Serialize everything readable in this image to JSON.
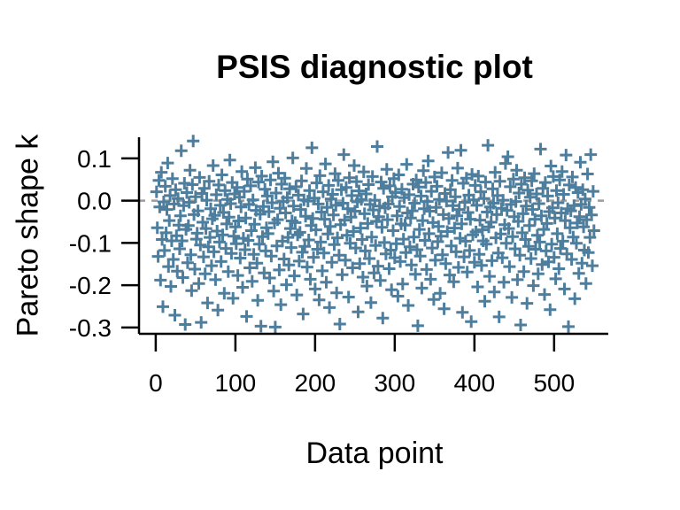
{
  "page": {
    "background": "#ffffff"
  },
  "chart_data": {
    "type": "scatter",
    "title": "PSIS diagnostic plot",
    "xlabel": "Data point",
    "ylabel": "Pareto shape k",
    "marker": "plus",
    "marker_color": "#4e7e9d",
    "axis_color": "#000000",
    "tick_label_color": "#000000",
    "hline": {
      "y": 0,
      "style": "dashed",
      "color": "#9c9c9c"
    },
    "grid": false,
    "legend": false,
    "xlim": [
      -21,
      568
    ],
    "ylim": [
      -0.315,
      0.15
    ],
    "xticks": [
      0,
      100,
      200,
      300,
      400,
      500
    ],
    "xtick_labels": [
      "0",
      "100",
      "200",
      "300",
      "400",
      "500"
    ],
    "yticks": [
      0.1,
      0.0,
      -0.1,
      -0.2,
      -0.3
    ],
    "ytick_labels": [
      "0.1",
      "0.0",
      "-0.1",
      "-0.2",
      "-0.3"
    ],
    "n_points": 550,
    "x_encoding": "data point index 1..550",
    "y": [
      0.021,
      -0.064,
      -0.132,
      0.048,
      -0.015,
      -0.188,
      0.067,
      -0.092,
      -0.251,
      -0.003,
      -0.118,
      0.034,
      -0.076,
      -0.021,
      0.089,
      -0.156,
      -0.047,
      0.012,
      -0.203,
      -0.095,
      0.052,
      -0.139,
      -0.008,
      -0.271,
      0.026,
      -0.083,
      -0.167,
      0.005,
      -0.058,
      -0.114,
      -0.036,
      0.118,
      -0.095,
      -0.182,
      -0.012,
      0.041,
      -0.293,
      -0.068,
      0.019,
      -0.147,
      -0.059,
      -0.004,
      0.072,
      -0.128,
      -0.213,
      0.038,
      0.141,
      -0.033,
      -0.162,
      0.009,
      -0.091,
      -0.077,
      -0.024,
      -0.196,
      0.055,
      -0.105,
      -0.288,
      0.017,
      -0.051,
      -0.133,
      0.029,
      -0.173,
      -0.066,
      0.001,
      -0.242,
      -0.109,
      0.046,
      -0.087,
      -0.019,
      -0.154,
      -0.043,
      0.083,
      -0.121,
      -0.035,
      -0.187,
      0.014,
      -0.072,
      -0.259,
      0.037,
      -0.098,
      -0.011,
      -0.144,
      0.061,
      -0.081,
      -0.028,
      -0.219,
      0.024,
      -0.113,
      -0.055,
      0.003,
      -0.168,
      -0.039,
      0.096,
      -0.007,
      -0.125,
      0.043,
      -0.231,
      -0.084,
      0.016,
      -0.062,
      -0.102,
      0.031,
      -0.177,
      -0.048,
      0.008,
      -0.136,
      -0.015,
      0.069,
      -0.205,
      -0.089,
      0.022,
      -0.116,
      -0.041,
      -0.274,
      0.051,
      -0.094,
      -0.009,
      -0.159,
      0.035,
      -0.071,
      -0.191,
      0.002,
      -0.127,
      -0.056,
      0.078,
      -0.023,
      -0.148,
      -0.236,
      0.044,
      -0.103,
      -0.032,
      -0.297,
      0.058,
      -0.085,
      -0.014,
      -0.171,
      0.027,
      -0.119,
      -0.064,
      0.011,
      -0.078,
      -0.026,
      -0.183,
      0.049,
      -0.131,
      -0.005,
      0.092,
      -0.214,
      -0.053,
      -0.299,
      0.018,
      -0.107,
      -0.045,
      0.065,
      -0.164,
      -0.018,
      -0.246,
      0.039,
      -0.096,
      -0.002,
      -0.138,
      0.053,
      -0.029,
      -0.199,
      0.007,
      -0.087,
      -0.152,
      0.028,
      -0.066,
      -0.111,
      -0.048,
      0.101,
      -0.013,
      -0.178,
      -0.052,
      0.033,
      -0.223,
      -0.081,
      0.013,
      -0.143,
      -0.075,
      -0.021,
      0.047,
      -0.122,
      -0.268,
      0.002,
      -0.108,
      -0.037,
      0.076,
      -0.157,
      -0.001,
      -0.093,
      0.024,
      -0.186,
      -0.059,
      0.125,
      -0.042,
      -0.134,
      0.006,
      -0.209,
      -0.069,
      0.042,
      -0.115,
      -0.008,
      -0.235,
      0.059,
      -0.098,
      -0.027,
      -0.166,
      0.021,
      -0.124,
      -0.044,
      0.087,
      -0.193,
      -0.016,
      -0.079,
      0.036,
      -0.253,
      -0.061,
      0.004,
      -0.146,
      0.015,
      -0.034,
      -0.104,
      0.064,
      -0.011,
      -0.218,
      -0.088,
      0.048,
      -0.129,
      -0.292,
      -0.057,
      0.026,
      -0.175,
      -0.006,
      0.109,
      -0.046,
      -0.141,
      0.031,
      -0.082,
      -0.019,
      -0.228,
      0.054,
      -0.101,
      -0.039,
      0.012,
      -0.159,
      -0.073,
      0.083,
      -0.025,
      -0.112,
      0.045,
      -0.003,
      -0.263,
      0.023,
      -0.149,
      -0.065,
      0.003,
      -0.092,
      -0.181,
      0.068,
      -0.031,
      -0.119,
      0.016,
      -0.202,
      -0.054,
      0.038,
      -0.137,
      -0.009,
      -0.241,
      -0.086,
      0.057,
      -0.022,
      -0.171,
      0.001,
      -0.106,
      -0.049,
      0.128,
      -0.155,
      -0.038,
      -0.013,
      -0.189,
      0.044,
      -0.063,
      -0.278,
      0.029,
      -0.099,
      -0.017,
      -0.126,
      0.074,
      -0.045,
      -0.008,
      -0.161,
      0.035,
      -0.117,
      -0.211,
      0.009,
      -0.071,
      0.052,
      -0.135,
      0.019,
      -0.102,
      -0.036,
      -0.226,
      0.061,
      -0.014,
      -0.144,
      -0.055,
      0.027,
      -0.197,
      -0.091,
      0.007,
      -0.058,
      -0.123,
      0.086,
      -0.029,
      -0.248,
      0.014,
      -0.109,
      -0.041,
      -0.152,
      -0.024,
      0.039,
      -0.086,
      -0.006,
      -0.174,
      0.049,
      -0.116,
      -0.296,
      0.032,
      -0.068,
      -0.131,
      0.011,
      -0.207,
      -0.047,
      0.071,
      -0.019,
      -0.094,
      0.043,
      -0.163,
      -0.002,
      0.094,
      -0.078,
      -0.025,
      -0.186,
      0.022,
      -0.112,
      -0.052,
      -0.234,
      0.056,
      -0.141,
      -0.016,
      0.034,
      -0.097,
      -0.061,
      0.003,
      -0.219,
      -0.084,
      0.066,
      -0.128,
      -0.033,
      -0.256,
      0.017,
      -0.149,
      -0.001,
      -0.073,
      0.114,
      -0.042,
      -0.176,
      0.026,
      -0.107,
      0.048,
      -0.012,
      -0.192,
      -0.065,
      0.009,
      -0.121,
      -0.036,
      0.077,
      -0.158,
      -0.021,
      -0.089,
      0.119,
      -0.055,
      -0.264,
      0.041,
      -0.133,
      -0.004,
      -0.096,
      0.053,
      -0.169,
      -0.028,
      0.013,
      -0.118,
      -0.044,
      -0.286,
      0.062,
      -0.081,
      0.002,
      -0.146,
      0.036,
      -0.074,
      -0.011,
      -0.204,
      0.058,
      -0.127,
      -0.046,
      0.021,
      -0.153,
      -0.069,
      -0.095,
      0.005,
      -0.238,
      0.044,
      -0.103,
      -0.027,
      0.131,
      -0.062,
      -0.179,
      -0.015,
      -0.051,
      -0.142,
      0.028,
      -0.006,
      -0.216,
      0.067,
      -0.088,
      -0.033,
      0.012,
      -0.124,
      -0.275,
      0.046,
      -0.079,
      -0.018,
      -0.135,
      0.001,
      -0.193,
      -0.057,
      0.088,
      -0.101,
      -0.023,
      0.104,
      -0.066,
      -0.156,
      0.033,
      -0.009,
      -0.229,
      -0.085,
      0.051,
      -0.038,
      -0.114,
      -0.002,
      0.072,
      -0.187,
      -0.049,
      0.018,
      -0.129,
      -0.294,
      0.039,
      -0.076,
      -0.031,
      -0.168,
      0.054,
      -0.092,
      -0.013,
      -0.243,
      0.025,
      -0.108,
      -0.059,
      0.008,
      -0.137,
      0.047,
      -0.021,
      -0.201,
      0.064,
      -0.044,
      -0.115,
      0.016,
      -0.082,
      -0.173,
      -0.007,
      -0.098,
      0.122,
      -0.036,
      -0.151,
      0.029,
      -0.068,
      -0.222,
      0.043,
      -0.119,
      -0.054,
      0.011,
      -0.145,
      -0.026,
      -0.258,
      0.082,
      -0.103,
      -0.017,
      0.057,
      -0.134,
      -0.041,
      -0.185,
      0.024,
      -0.078,
      -0.005,
      -0.161,
      0.049,
      -0.113,
      -0.029,
      0.069,
      -0.096,
      0.015,
      -0.209,
      -0.047,
      0.108,
      -0.126,
      -0.019,
      -0.298,
      0.037,
      -0.064,
      -0.024,
      -0.139,
      0.056,
      -0.086,
      -0.012,
      -0.232,
      0.031,
      -0.101,
      -0.053,
      0.019,
      -0.172,
      -0.038,
      0.091,
      -0.009,
      -0.148,
      0.026,
      -0.062,
      -0.117,
      0.004,
      -0.196,
      -0.045,
      0.063,
      -0.123,
      -0.016,
      -0.087,
      0.109,
      -0.034,
      -0.154,
      0.022,
      -0.071
    ]
  }
}
